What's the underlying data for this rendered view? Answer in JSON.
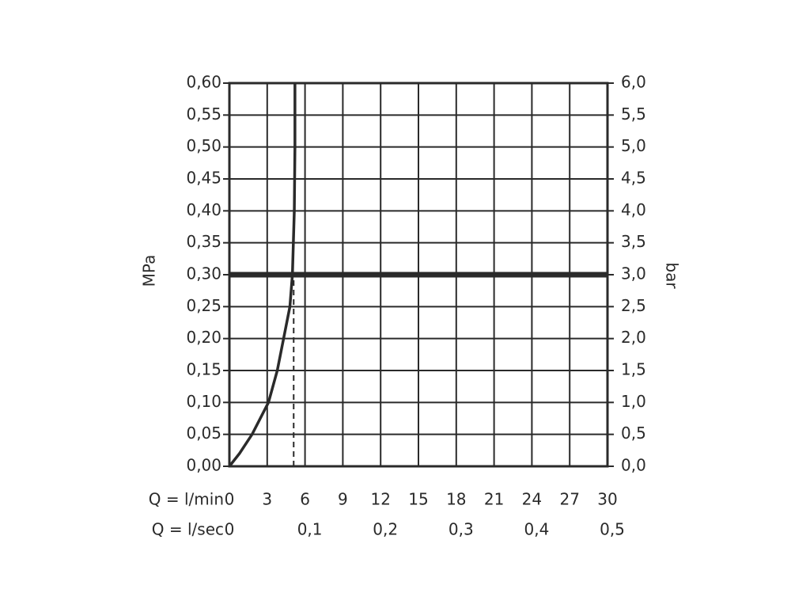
{
  "chart_data": {
    "type": "line",
    "y_label": "MPa",
    "y2_label": "bar",
    "x_label": "Q = l/min",
    "x2_label": "Q = l/sec",
    "xlim": [
      0,
      30
    ],
    "xticks": [
      0,
      3,
      6,
      9,
      12,
      15,
      18,
      21,
      24,
      27,
      30
    ],
    "x2lim": [
      0,
      0.5
    ],
    "x2ticks": [
      0,
      {
        "value": 0.1,
        "label": "0,1"
      },
      {
        "value": 0.2,
        "label": "0,2"
      },
      {
        "value": 0.3,
        "label": "0,3"
      },
      {
        "value": 0.4,
        "label": "0,4"
      },
      {
        "value": 0.5,
        "label": "0,5"
      }
    ],
    "ylim": [
      0,
      0.6
    ],
    "yticks": [
      {
        "value": 0,
        "label": "0,00"
      },
      {
        "value": 0.05,
        "label": "0,05"
      },
      {
        "value": 0.1,
        "label": "0,10"
      },
      {
        "value": 0.15,
        "label": "0,15"
      },
      {
        "value": 0.2,
        "label": "0,20"
      },
      {
        "value": 0.25,
        "label": "0,25"
      },
      {
        "value": 0.3,
        "label": "0,30"
      },
      {
        "value": 0.35,
        "label": "0,35"
      },
      {
        "value": 0.4,
        "label": "0,40"
      },
      {
        "value": 0.45,
        "label": "0,45"
      },
      {
        "value": 0.5,
        "label": "0,50"
      },
      {
        "value": 0.55,
        "label": "0,55"
      },
      {
        "value": 0.6,
        "label": "0,60"
      }
    ],
    "y2lim": [
      0,
      6
    ],
    "y2ticks": [
      {
        "value": 0,
        "label": "0,0"
      },
      {
        "value": 0.5,
        "label": "0,5"
      },
      {
        "value": 1,
        "label": "1,0"
      },
      {
        "value": 1.5,
        "label": "1,5"
      },
      {
        "value": 2,
        "label": "2,0"
      },
      {
        "value": 2.5,
        "label": "2,5"
      },
      {
        "value": 3,
        "label": "3,0"
      },
      {
        "value": 3.5,
        "label": "3,5"
      },
      {
        "value": 4,
        "label": "4,0"
      },
      {
        "value": 4.5,
        "label": "4,5"
      },
      {
        "value": 5,
        "label": "5,0"
      },
      {
        "value": 5.5,
        "label": "5,5"
      },
      {
        "value": 6,
        "label": "6,0"
      }
    ],
    "grid": true,
    "color": "#2a2a2a",
    "curve": {
      "x": [
        0,
        0.8,
        1.8,
        3.1,
        3.8,
        4.3,
        4.8,
        5.0,
        5.15,
        5.2,
        5.2
      ],
      "values": [
        0,
        0.02,
        0.05,
        0.1,
        0.15,
        0.2,
        0.25,
        0.3,
        0.4,
        0.5,
        0.6
      ]
    },
    "hline": 0.3,
    "vline": 5.1
  }
}
